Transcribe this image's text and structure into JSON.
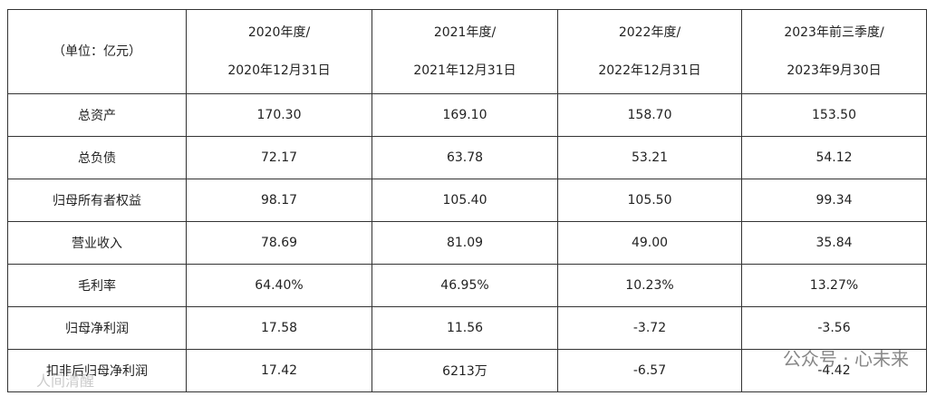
{
  "table": {
    "unit": "（单位：亿元）",
    "header": [
      [
        "2020年度/",
        "2020年12月31日"
      ],
      [
        "2021年度/",
        "2021年12月31日"
      ],
      [
        "2022年度/",
        "2022年12月31日"
      ],
      [
        "2023年前三季度/",
        "2023年9月30日"
      ]
    ],
    "rows": [
      [
        "总资产",
        "170.30",
        "169.10",
        "158.70",
        "153.50"
      ],
      [
        "总负债",
        "72.17",
        "63.78",
        "53.21",
        "54.12"
      ],
      [
        "归母所有者权益",
        "98.17",
        "105.40",
        "105.50",
        "99.34"
      ],
      [
        "营业收入",
        "78.69",
        "81.09",
        "49.00",
        "35.84"
      ],
      [
        "毛利率",
        "64.40%",
        "46.95%",
        "10.23%",
        "13.27%"
      ],
      [
        "归母净利润",
        "17.58",
        "11.56",
        "-3.72",
        "-3.56"
      ],
      [
        "扣非后归母净利润",
        "17.42",
        "6213万",
        "-6.57",
        "-4.42"
      ]
    ]
  },
  "watermark": {
    "right": "公众号 · 心未来",
    "left": "人间清醒"
  }
}
